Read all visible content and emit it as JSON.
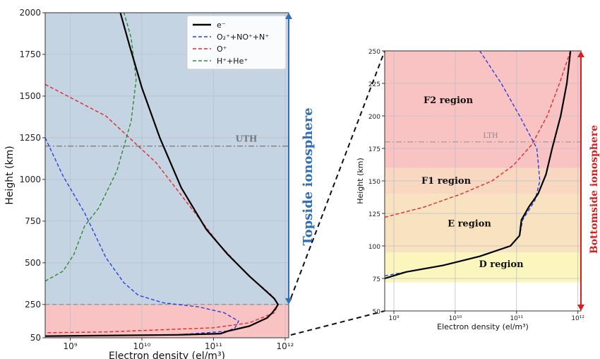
{
  "chart_data": [
    {
      "type": "line",
      "xlabel": "Electron density (el/m³)",
      "ylabel": "Height (km)",
      "xscale": "log",
      "xlim_log10": [
        8.65,
        12.05
      ],
      "ylim": [
        50,
        2000
      ],
      "x_ticks": [
        "10⁹",
        "10¹⁰",
        "10¹¹",
        "10¹²"
      ],
      "x_ticks_log10": [
        9,
        10,
        11,
        12
      ],
      "y_ticks": [
        "50",
        "250",
        "500",
        "750",
        "1000",
        "1250",
        "1500",
        "1750",
        "2000"
      ],
      "y_ticks_values": [
        50,
        250,
        500,
        750,
        1000,
        1250,
        1500,
        1750,
        2000
      ],
      "grid": true,
      "legend_position": "top-right",
      "series": [
        {
          "name": "e⁻",
          "color": "#000000",
          "style": "solid",
          "points_log10x": [
            [
              8.65,
              60
            ],
            [
              10.5,
              68
            ],
            [
              11.1,
              75
            ],
            [
              11.2,
              90
            ],
            [
              11.5,
              120
            ],
            [
              11.75,
              170
            ],
            [
              11.82,
              200
            ],
            [
              11.88,
              235
            ],
            [
              11.9,
              250
            ],
            [
              11.85,
              285
            ],
            [
              11.5,
              420
            ],
            [
              11.2,
              550
            ],
            [
              10.9,
              700
            ],
            [
              10.55,
              950
            ],
            [
              10.25,
              1250
            ],
            [
              10,
              1550
            ],
            [
              9.83,
              1800
            ],
            [
              9.7,
              2000
            ]
          ]
        },
        {
          "name": "O₂⁺+NO⁺+N⁺",
          "color": "#2b3fe0",
          "style": "dashed",
          "points_log10x": [
            [
              8.65,
              1250
            ],
            [
              8.9,
              1020
            ],
            [
              9.2,
              800
            ],
            [
              9.5,
              530
            ],
            [
              9.75,
              380
            ],
            [
              9.95,
              305
            ],
            [
              10.3,
              260
            ],
            [
              10.8,
              235
            ],
            [
              11.15,
              200
            ],
            [
              11.35,
              150
            ],
            [
              11.3,
              110
            ],
            [
              11.2,
              90
            ],
            [
              10.5,
              68
            ],
            [
              8.65,
              60
            ]
          ]
        },
        {
          "name": "O⁺",
          "color": "#e02a2a",
          "style": "dashed",
          "points_log10x": [
            [
              8.65,
              1570
            ],
            [
              9.5,
              1380
            ],
            [
              10.2,
              1100
            ],
            [
              10.65,
              850
            ],
            [
              11.1,
              600
            ],
            [
              11.5,
              420
            ],
            [
              11.8,
              310
            ],
            [
              11.9,
              250
            ],
            [
              11.85,
              200
            ],
            [
              11.5,
              140
            ],
            [
              11,
              110
            ],
            [
              9.5,
              85
            ],
            [
              8.65,
              80
            ]
          ]
        },
        {
          "name": "H⁺+He⁺",
          "color": "#2f8a2f",
          "style": "dashed",
          "points_log10x": [
            [
              8.65,
              390
            ],
            [
              8.9,
              450
            ],
            [
              9.05,
              550
            ],
            [
              9.2,
              720
            ],
            [
              9.4,
              830
            ],
            [
              9.65,
              1050
            ],
            [
              9.85,
              1350
            ],
            [
              9.92,
              1600
            ],
            [
              9.85,
              1850
            ],
            [
              9.75,
              2000
            ]
          ]
        }
      ],
      "reference_lines": [
        {
          "label": "UTH",
          "y": 1200,
          "style": "dash-dot",
          "color": "#777777"
        },
        {
          "label": "",
          "y": 250,
          "style": "dashed",
          "color": "#888888"
        }
      ],
      "bands": [
        {
          "from": 50,
          "to": 250,
          "color": "#f9c3c3"
        },
        {
          "from": 250,
          "to": 2000,
          "color": "#c5d4e3"
        }
      ],
      "side_annotation": {
        "text": "Topside ionosphere",
        "color": "#2f6fb7",
        "range": [
          250,
          2000
        ]
      }
    },
    {
      "type": "line",
      "xlabel": "Electron density (el/m³)",
      "ylabel": "Height (km)",
      "xscale": "log",
      "xlim_log10": [
        8.85,
        12.05
      ],
      "ylim": [
        50,
        250
      ],
      "x_ticks": [
        "10⁹",
        "10¹⁰",
        "10¹¹",
        "10¹²"
      ],
      "x_ticks_log10": [
        9,
        10,
        11,
        12
      ],
      "y_ticks": [
        "50",
        "75",
        "100",
        "125",
        "150",
        "175",
        "200",
        "225",
        "250"
      ],
      "y_ticks_values": [
        50,
        75,
        100,
        125,
        150,
        175,
        200,
        225,
        250
      ],
      "grid": true,
      "series": [
        {
          "name": "e⁻",
          "color": "#000000",
          "style": "solid",
          "points_log10x": [
            [
              8.85,
              75
            ],
            [
              9.2,
              80
            ],
            [
              9.8,
              85
            ],
            [
              10.4,
              92
            ],
            [
              10.9,
              100
            ],
            [
              11.05,
              108
            ],
            [
              11.08,
              120
            ],
            [
              11.2,
              130
            ],
            [
              11.35,
              140
            ],
            [
              11.48,
              155
            ],
            [
              11.58,
              175
            ],
            [
              11.72,
              200
            ],
            [
              11.82,
              225
            ],
            [
              11.88,
              250
            ]
          ]
        },
        {
          "name": "O₂⁺+NO⁺+N⁺",
          "color": "#2b3fe0",
          "style": "dashed",
          "points_log10x": [
            [
              8.85,
              77
            ],
            [
              9.2,
              80
            ],
            [
              9.8,
              85
            ],
            [
              10.4,
              92
            ],
            [
              10.9,
              100
            ],
            [
              11.05,
              108
            ],
            [
              11.1,
              120
            ],
            [
              11.3,
              135
            ],
            [
              11.38,
              150
            ],
            [
              11.33,
              175
            ],
            [
              11.05,
              200
            ],
            [
              10.75,
              225
            ],
            [
              10.4,
              250
            ]
          ]
        },
        {
          "name": "O⁺",
          "color": "#e02a2a",
          "style": "dashed",
          "points_log10x": [
            [
              8.85,
              122
            ],
            [
              9.5,
              130
            ],
            [
              10.1,
              140
            ],
            [
              10.6,
              150
            ],
            [
              10.95,
              162
            ],
            [
              11.25,
              178
            ],
            [
              11.5,
              200
            ],
            [
              11.7,
              225
            ],
            [
              11.88,
              250
            ]
          ]
        }
      ],
      "reference_lines": [
        {
          "label": "LTH",
          "y": 180,
          "style": "dash-dot",
          "color": "#999999"
        }
      ],
      "bands": [
        {
          "label": "D region",
          "from": 72,
          "to": 95,
          "color": "#fbf6bd"
        },
        {
          "label": "E region",
          "from": 95,
          "to": 140,
          "color": "#f9e2bf"
        },
        {
          "label": "F1 region",
          "from": 140,
          "to": 160,
          "color": "#f8d8c0"
        },
        {
          "label": "F2 region",
          "from": 160,
          "to": 250,
          "color": "#f9c3c3"
        }
      ],
      "side_annotation": {
        "text": "Bottomside ionosphere",
        "color": "#d42020",
        "range": [
          50,
          250
        ]
      }
    }
  ]
}
